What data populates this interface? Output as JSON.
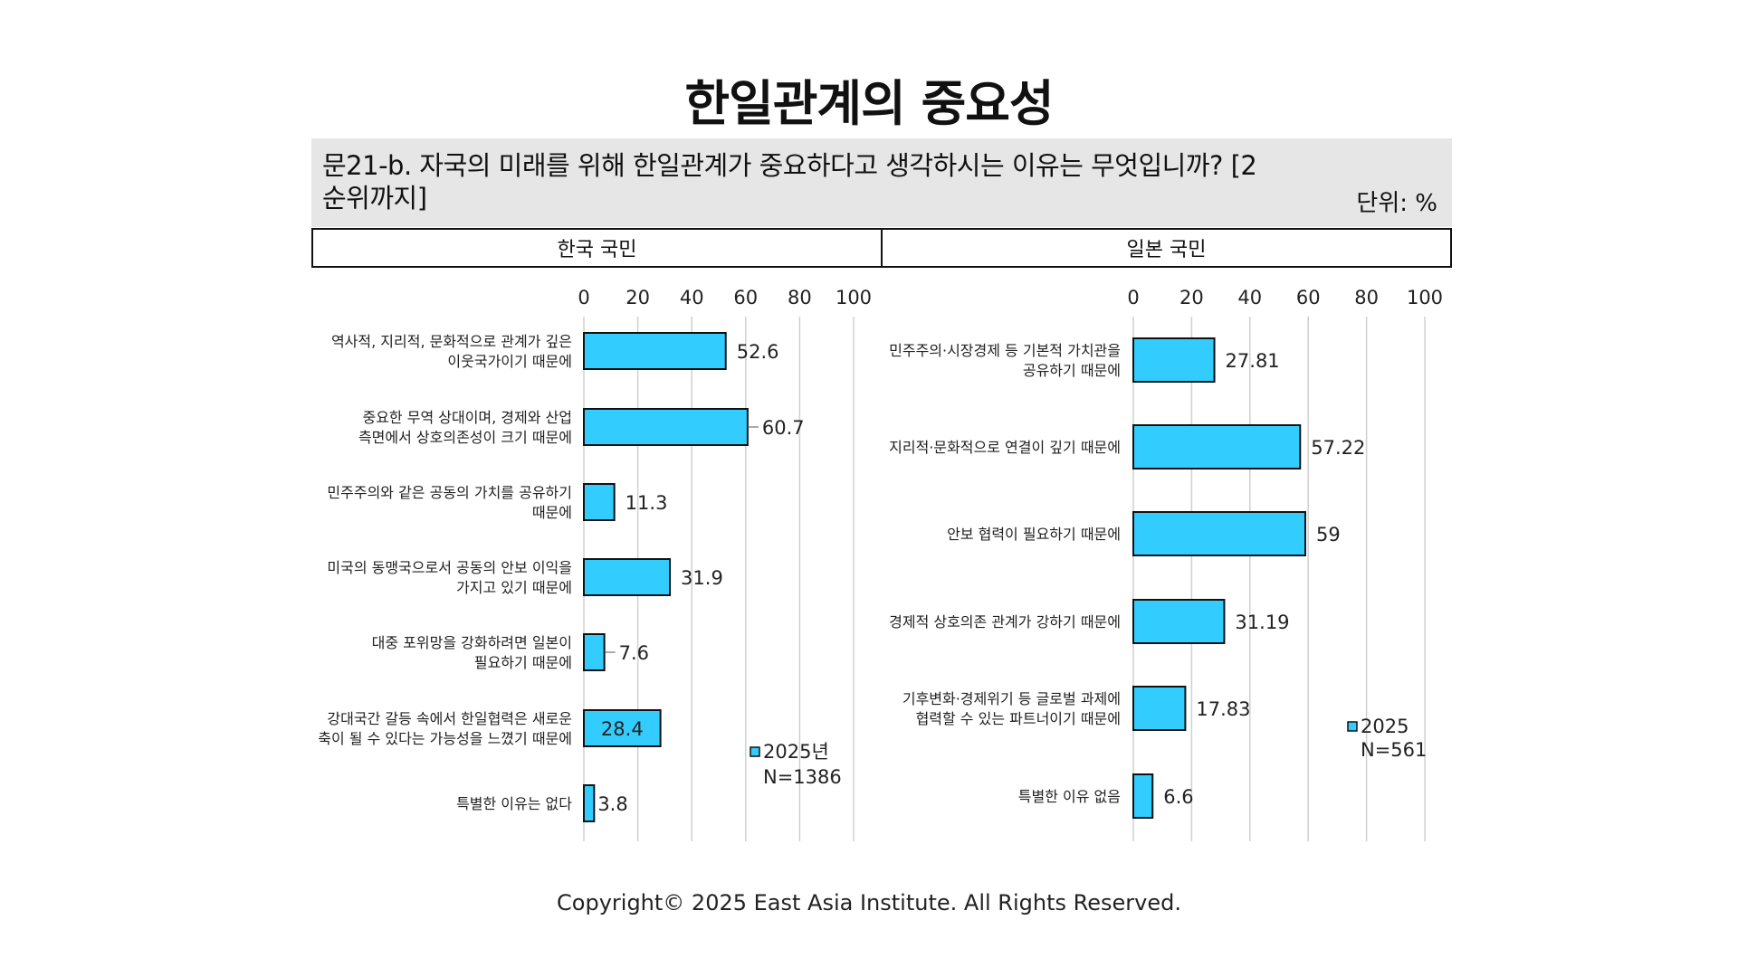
{
  "title": "한일관계의 중요성",
  "question": {
    "text": "문21-b. 자국의 미래를 위해 한일관계가 중요하다고 생각하시는 이유는 무엇입니까? [2순위까지]",
    "unit": "단위: %"
  },
  "panels": {
    "left_header": "한국 국민",
    "right_header": "일본 국민"
  },
  "footer": "Copyright© 2025 East Asia Institute. All Rights Reserved.",
  "colors": {
    "bar": "#33ccff",
    "bar_stroke": "#111111",
    "grid": "#d0d0d0"
  },
  "chart_data": [
    {
      "type": "bar",
      "orientation": "horizontal",
      "panel": "한국 국민",
      "xlim": [
        0,
        100
      ],
      "xticks": [
        0,
        20,
        40,
        60,
        80,
        100
      ],
      "grid": true,
      "legend": {
        "label": "2025년",
        "n": "N=1386",
        "placement": "bottom-right"
      },
      "series": [
        {
          "name": "2025년",
          "values": [
            52.6,
            60.7,
            11.3,
            31.9,
            7.6,
            28.4,
            3.8
          ]
        }
      ],
      "categories": [
        [
          "역사적, 지리적, 문화적으로 관계가 깊은",
          "이웃국가이기 때문에"
        ],
        [
          "중요한 무역 상대이며, 경제와 산업",
          "측면에서 상호의존성이 크기 때문에"
        ],
        [
          "민주주의와 같은 공동의 가치를 공유하기",
          "때문에"
        ],
        [
          "미국의 동맹국으로서 공동의 안보 이익을",
          "가지고 있기 때문에"
        ],
        [
          "대중 포위망을 강화하려면 일본이",
          "필요하기 때문에"
        ],
        [
          "강대국간 갈등 속에서 한일협력은 새로운",
          "축이 될 수 있다는 가능성을 느꼈기 때문에"
        ],
        [
          "특별한 이유는 없다"
        ]
      ],
      "value_labels": [
        "52.6",
        "60.7",
        "11.3",
        "31.9",
        "7.6",
        "28.4",
        "3.8"
      ]
    },
    {
      "type": "bar",
      "orientation": "horizontal",
      "panel": "일본 국민",
      "xlim": [
        0,
        100
      ],
      "xticks": [
        0,
        20,
        40,
        60,
        80,
        100
      ],
      "grid": true,
      "legend": {
        "label": "2025",
        "n": "N=561",
        "placement": "right"
      },
      "series": [
        {
          "name": "2025",
          "values": [
            27.81,
            57.22,
            59,
            31.19,
            17.83,
            6.6
          ]
        }
      ],
      "categories": [
        [
          "민주주의·시장경제 등 기본적 가치관을",
          "공유하기 때문에"
        ],
        [
          "지리적·문화적으로 연결이 깊기 때문에"
        ],
        [
          "안보 협력이 필요하기 때문에"
        ],
        [
          "경제적 상호의존 관계가 강하기 때문에"
        ],
        [
          "기후변화·경제위기 등 글로벌 과제에",
          "협력할 수 있는 파트너이기 때문에"
        ],
        [
          "특별한 이유 없음"
        ]
      ],
      "value_labels": [
        "27.81",
        "57.22",
        "59",
        "31.19",
        "17.83",
        "6.6"
      ]
    }
  ]
}
